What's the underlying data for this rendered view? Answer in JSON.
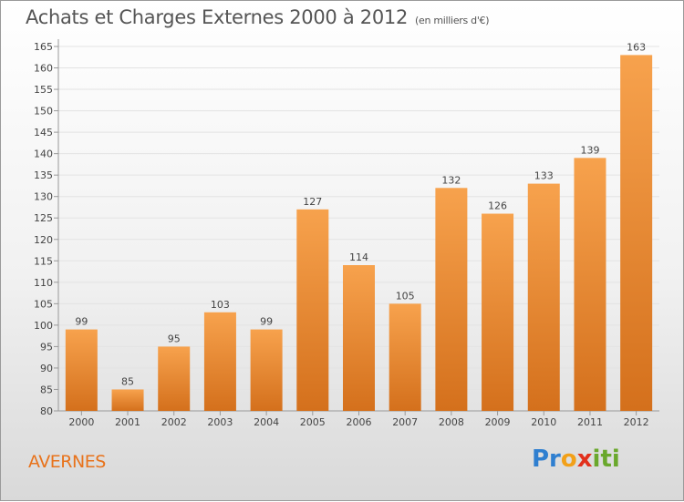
{
  "header": {
    "title": "Achats et Charges Externes 2000 à 2012",
    "subtitle": "(en milliers d'€)"
  },
  "footer": {
    "place": "AVERNES",
    "logo_parts": [
      "Pr",
      "o",
      "x",
      "iti"
    ]
  },
  "colors": {
    "bar_light": "#f7a24d",
    "bar_dark": "#d4701c",
    "accent": "#e8731c"
  },
  "chart_data": {
    "type": "bar",
    "title": "Achats et Charges Externes 2000 à 2012",
    "subtitle": "(en milliers d'€)",
    "categories": [
      "2000",
      "2001",
      "2002",
      "2003",
      "2004",
      "2005",
      "2006",
      "2007",
      "2008",
      "2009",
      "2010",
      "2011",
      "2012"
    ],
    "values": [
      99,
      85,
      95,
      103,
      99,
      127,
      114,
      105,
      132,
      126,
      133,
      139,
      163
    ],
    "ylim": [
      80,
      165
    ],
    "yticks": [
      80,
      85,
      90,
      95,
      100,
      105,
      110,
      115,
      120,
      125,
      130,
      135,
      140,
      145,
      150,
      155,
      160,
      165
    ],
    "grid": true,
    "legend": "none"
  }
}
